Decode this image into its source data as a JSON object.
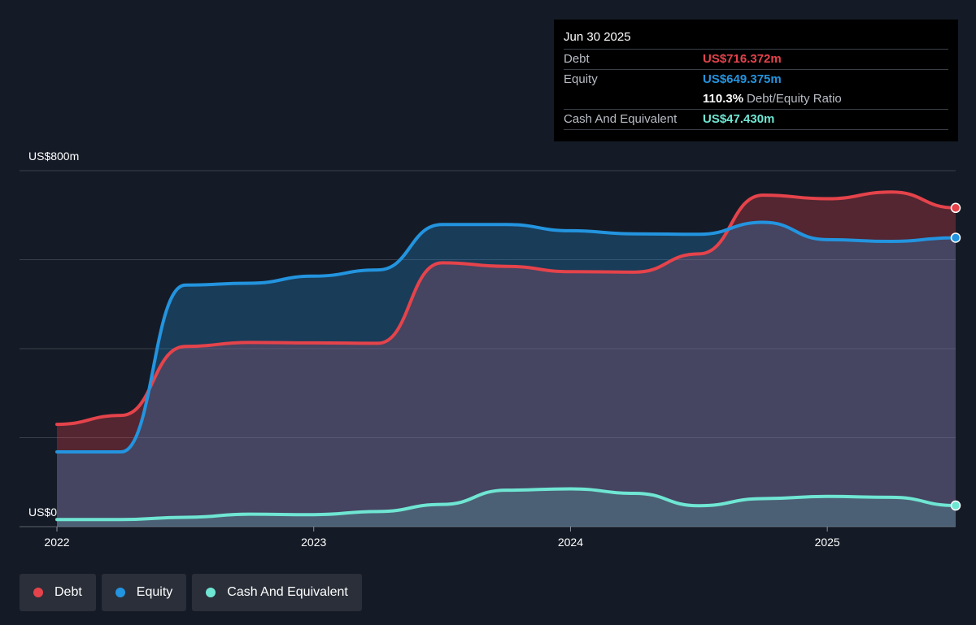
{
  "tooltip": {
    "date": "Jun 30 2025",
    "debt_label": "Debt",
    "debt_value": "US$716.372m",
    "equity_label": "Equity",
    "equity_value": "US$649.375m",
    "ratio_value": "110.3%",
    "ratio_label": "Debt/Equity Ratio",
    "cash_label": "Cash And Equivalent",
    "cash_value": "US$47.430m"
  },
  "legend": [
    {
      "label": "Debt",
      "color": "#e5434b"
    },
    {
      "label": "Equity",
      "color": "#2394df"
    },
    {
      "label": "Cash And Equivalent",
      "color": "#6fe6d3"
    }
  ],
  "chart_data": {
    "type": "area",
    "y_top_label": "US$800m",
    "y_bottom_label": "US$0",
    "ylim": [
      0,
      800
    ],
    "xlim": [
      2022.0,
      2025.5
    ],
    "x_ticks": [
      {
        "value": 2022,
        "label": "2022"
      },
      {
        "value": 2023,
        "label": "2023"
      },
      {
        "value": 2024,
        "label": "2024"
      },
      {
        "value": 2025,
        "label": "2025"
      }
    ],
    "grid": true,
    "series": [
      {
        "name": "Debt",
        "color": "#e5434b",
        "points": [
          [
            2022.0,
            230
          ],
          [
            2022.25,
            250
          ],
          [
            2022.5,
            405
          ],
          [
            2022.75,
            414
          ],
          [
            2023.0,
            413
          ],
          [
            2023.25,
            412
          ],
          [
            2023.5,
            593
          ],
          [
            2023.75,
            585
          ],
          [
            2024.0,
            573
          ],
          [
            2024.25,
            572
          ],
          [
            2024.5,
            613
          ],
          [
            2024.75,
            745
          ],
          [
            2025.0,
            737
          ],
          [
            2025.25,
            752
          ],
          [
            2025.5,
            716.372
          ]
        ]
      },
      {
        "name": "Equity",
        "color": "#2394df",
        "points": [
          [
            2022.0,
            168
          ],
          [
            2022.25,
            168
          ],
          [
            2022.5,
            543
          ],
          [
            2022.75,
            547
          ],
          [
            2023.0,
            563
          ],
          [
            2023.25,
            577
          ],
          [
            2023.5,
            679
          ],
          [
            2023.75,
            679
          ],
          [
            2024.0,
            665
          ],
          [
            2024.25,
            658
          ],
          [
            2024.5,
            657
          ],
          [
            2024.75,
            684
          ],
          [
            2025.0,
            645
          ],
          [
            2025.25,
            641
          ],
          [
            2025.5,
            649.375
          ]
        ]
      },
      {
        "name": "Cash And Equivalent",
        "color": "#6fe6d3",
        "points": [
          [
            2022.0,
            16
          ],
          [
            2022.25,
            16
          ],
          [
            2022.5,
            21
          ],
          [
            2022.75,
            28
          ],
          [
            2023.0,
            27
          ],
          [
            2023.25,
            34
          ],
          [
            2023.5,
            50
          ],
          [
            2023.75,
            82
          ],
          [
            2024.0,
            85
          ],
          [
            2024.25,
            75
          ],
          [
            2024.5,
            47
          ],
          [
            2024.75,
            63
          ],
          [
            2025.0,
            68
          ],
          [
            2025.25,
            66
          ],
          [
            2025.5,
            47.43
          ]
        ]
      }
    ]
  }
}
